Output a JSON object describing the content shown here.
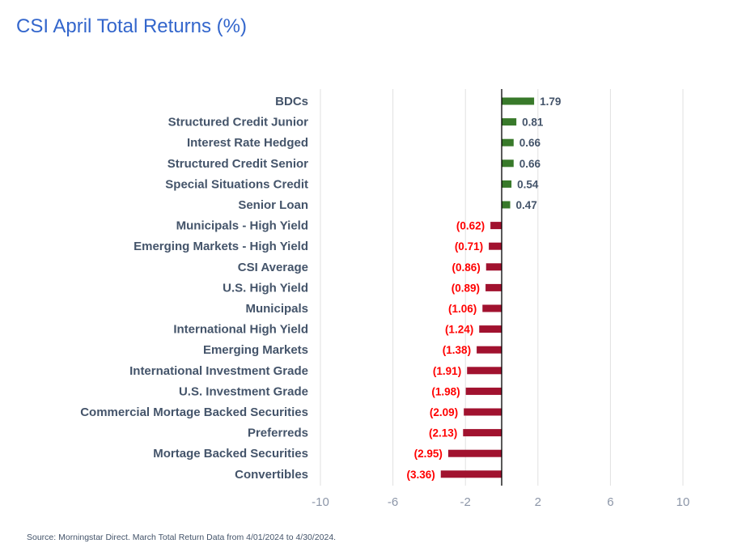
{
  "chart_data": {
    "type": "bar",
    "orientation": "horizontal",
    "title": "CSI April Total Returns (%)",
    "xlabel": "",
    "ylabel": "",
    "xlim": [
      -10,
      10
    ],
    "xticks": [
      -10,
      -6,
      -2,
      2,
      6,
      10
    ],
    "grid": true,
    "categories": [
      "BDCs",
      "Structured Credit Junior",
      "Interest Rate Hedged",
      "Structured Credit Senior",
      "Special Situations Credit",
      "Senior Loan",
      "Municipals - High Yield",
      "Emerging Markets - High Yield",
      "CSI Average",
      "U.S. High Yield",
      "Municipals",
      "International High Yield",
      "Emerging Markets",
      "International Investment Grade",
      "U.S. Investment Grade",
      "Commercial Mortage Backed Securities",
      "Preferreds",
      "Mortage Backed Securities",
      "Convertibles"
    ],
    "values": [
      1.79,
      0.81,
      0.66,
      0.66,
      0.54,
      0.47,
      -0.62,
      -0.71,
      -0.86,
      -0.89,
      -1.06,
      -1.24,
      -1.38,
      -1.91,
      -1.98,
      -2.09,
      -2.13,
      -2.95,
      -3.36
    ],
    "data_labels": [
      "1.79",
      "0.81",
      "0.66",
      "0.66",
      "0.54",
      "0.47",
      "(0.62)",
      "(0.71)",
      "(0.86)",
      "(0.89)",
      "(1.06)",
      "(1.24)",
      "(1.38)",
      "(1.91)",
      "(1.98)",
      "(2.09)",
      "(2.13)",
      "(2.95)",
      "(3.36)"
    ],
    "colors": {
      "positive": "#38792a",
      "negative": "#a1122f",
      "positive_label": "#44546a",
      "negative_label": "#ff0000",
      "grid": "#e0e0e0",
      "zero_line": "#000000"
    }
  },
  "source": "Source: Morningstar Direct. March Total Return Data from 4/01/2024 to 4/30/2024."
}
